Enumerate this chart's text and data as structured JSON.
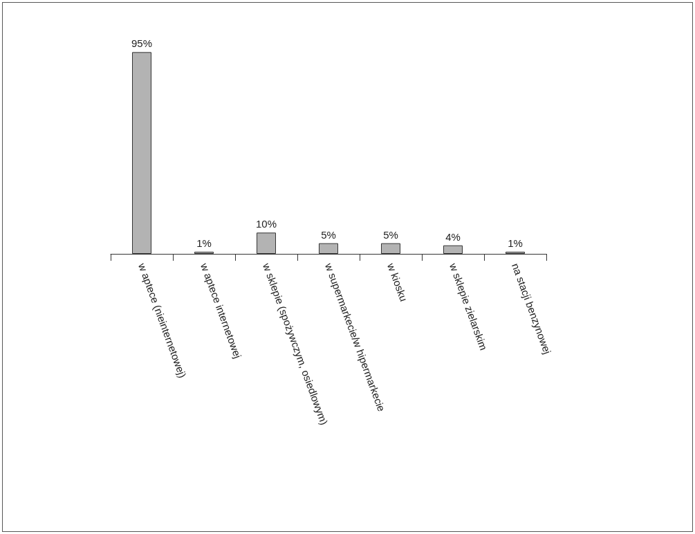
{
  "chart_data": {
    "type": "bar",
    "categories": [
      "w aptece (nieinternetowej)",
      "w aptece internetowej",
      "w sklepie (spożywczym, osiedlowym)",
      "w supermarkecie/w hipermarkecie",
      "w kiosku",
      "w sklepie zielarskim",
      "na stacji benzynowej"
    ],
    "values": [
      95,
      1,
      10,
      5,
      5,
      4,
      1
    ],
    "value_labels": [
      "95%",
      "1%",
      "10%",
      "5%",
      "5%",
      "4%",
      "1%"
    ],
    "color": "#b3b3b3"
  }
}
